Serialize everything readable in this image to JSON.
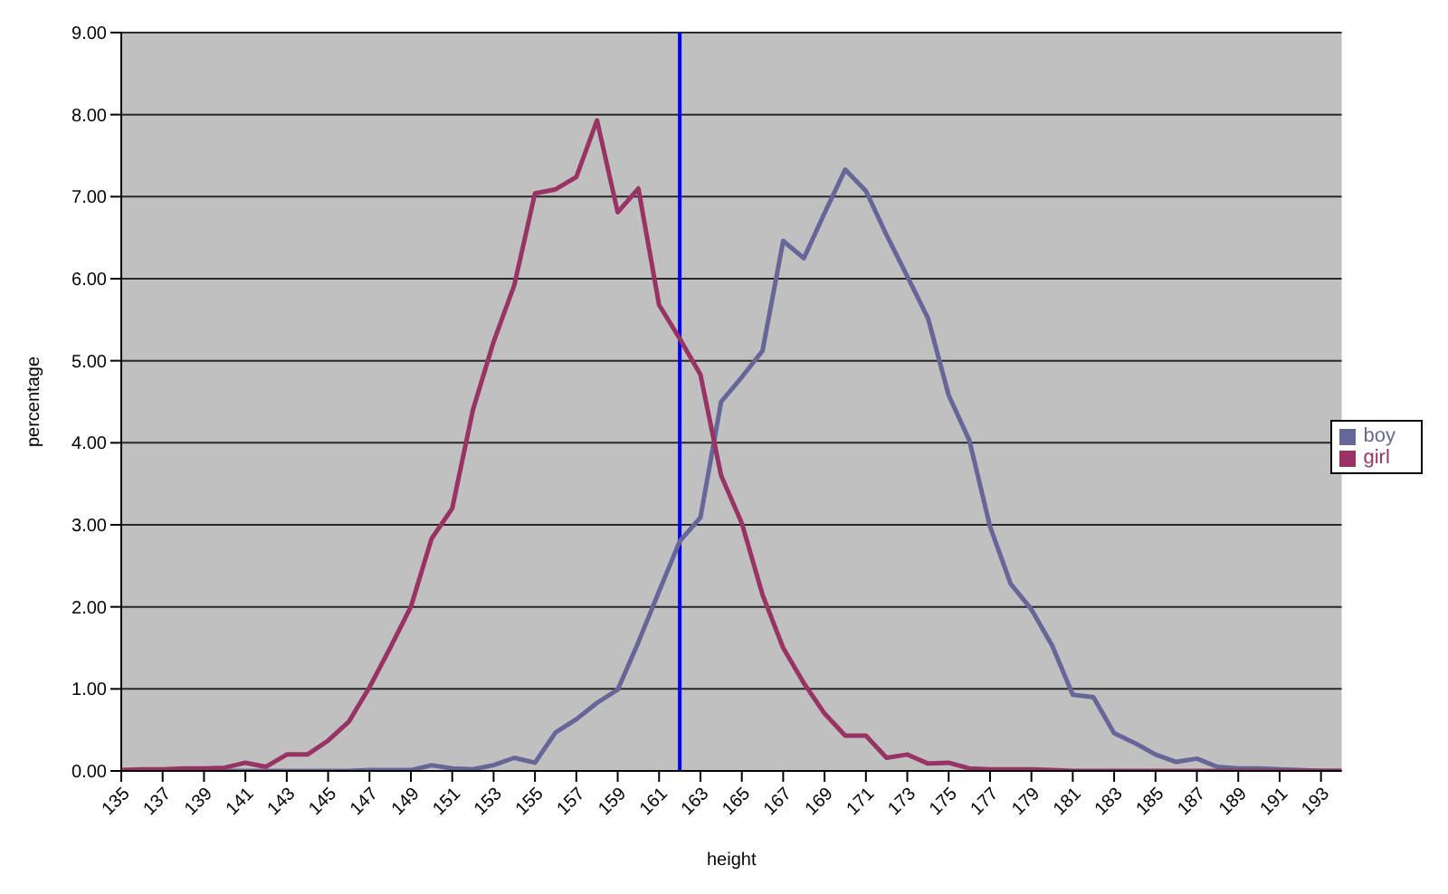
{
  "chart_data": {
    "type": "line",
    "xlabel": "height",
    "ylabel": "percentage",
    "x": [
      135,
      136,
      137,
      138,
      139,
      140,
      141,
      142,
      143,
      144,
      145,
      146,
      147,
      148,
      149,
      150,
      151,
      152,
      153,
      154,
      155,
      156,
      157,
      158,
      159,
      160,
      161,
      162,
      163,
      164,
      165,
      166,
      167,
      168,
      169,
      170,
      171,
      172,
      173,
      174,
      175,
      176,
      177,
      178,
      179,
      180,
      181,
      182,
      183,
      184,
      185,
      186,
      187,
      188,
      189,
      190,
      191,
      192,
      193,
      194
    ],
    "series": [
      {
        "name": "boy",
        "color": "#666699",
        "values": [
          0,
          0,
          0,
          0,
          0,
          0,
          0,
          0,
          0,
          0,
          0,
          0,
          0.01,
          0.01,
          0.01,
          0.07,
          0.03,
          0.02,
          0.07,
          0.16,
          0.1,
          0.47,
          0.63,
          0.83,
          0.99,
          1.57,
          2.19,
          2.8,
          3.09,
          4.5,
          4.8,
          5.12,
          6.46,
          6.25,
          6.8,
          7.33,
          7.07,
          6.53,
          6.03,
          5.52,
          4.58,
          4.03,
          2.98,
          2.28,
          1.97,
          1.53,
          0.93,
          0.9,
          0.46,
          0.34,
          0.2,
          0.11,
          0.15,
          0.05,
          0.03,
          0.03,
          0.02,
          0.01,
          0,
          0
        ]
      },
      {
        "name": "girl",
        "color": "#993366",
        "values": [
          0.01,
          0.02,
          0.02,
          0.03,
          0.03,
          0.04,
          0.1,
          0.05,
          0.2,
          0.2,
          0.37,
          0.6,
          1.02,
          1.5,
          2.0,
          2.83,
          3.2,
          4.4,
          5.23,
          5.92,
          7.04,
          7.09,
          7.24,
          7.93,
          6.81,
          7.1,
          5.68,
          5.27,
          4.83,
          3.6,
          3.02,
          2.15,
          1.5,
          1.07,
          0.7,
          0.43,
          0.43,
          0.16,
          0.2,
          0.09,
          0.1,
          0.03,
          0.02,
          0.02,
          0.02,
          0.01,
          0,
          0,
          0,
          0,
          0,
          0,
          0,
          0,
          0,
          0,
          0,
          0,
          0,
          0
        ]
      }
    ],
    "xlim": [
      135,
      194
    ],
    "xticks": [
      135,
      137,
      139,
      141,
      143,
      145,
      147,
      149,
      151,
      153,
      155,
      157,
      159,
      161,
      163,
      165,
      167,
      169,
      171,
      173,
      175,
      177,
      179,
      181,
      183,
      185,
      187,
      189,
      191,
      193
    ],
    "ylim": [
      0,
      9
    ],
    "yticks": [
      {
        "value": 0,
        "label": "0.00"
      },
      {
        "value": 1,
        "label": "1.00"
      },
      {
        "value": 2,
        "label": "2.00"
      },
      {
        "value": 3,
        "label": "3.00"
      },
      {
        "value": 4,
        "label": "4.00"
      },
      {
        "value": 5,
        "label": "5.00"
      },
      {
        "value": 6,
        "label": "6.00"
      },
      {
        "value": 7,
        "label": "7.00"
      },
      {
        "value": 8,
        "label": "8.00"
      },
      {
        "value": 9,
        "label": "9.00"
      }
    ],
    "ref_lines": [
      {
        "axis": "x",
        "value": 162,
        "color": "#0000ff"
      }
    ],
    "grid": "y",
    "legend": "right",
    "marker": "none",
    "line_style": "solid"
  }
}
